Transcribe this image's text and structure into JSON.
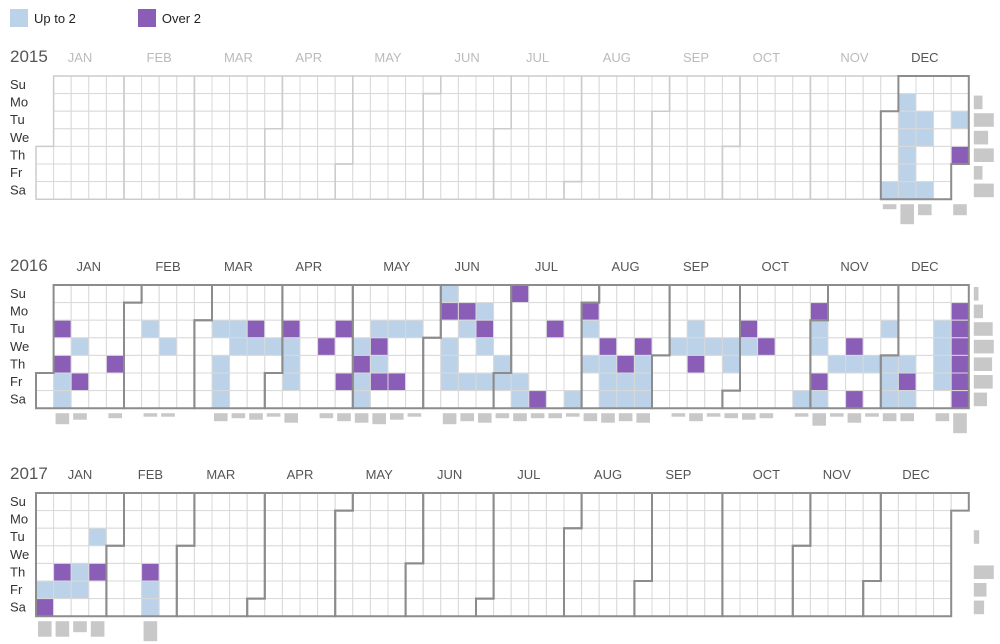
{
  "legend": {
    "up_to_2": {
      "label": "Up to 2",
      "color": "#bcd2e8"
    },
    "over_2": {
      "label": "Over 2",
      "color": "#8a5db6"
    }
  },
  "colors": {
    "empty_cell": "#ffffff",
    "grid_line": "#d9d9d9",
    "month_border": "#8c8c8c",
    "future_border": "#cccccc",
    "month_label": "#555555",
    "month_label_faded": "#bbbbbb",
    "summary_bar": "#c8c8c8"
  },
  "day_labels": [
    "Su",
    "Mo",
    "Tu",
    "We",
    "Th",
    "Fr",
    "Sa"
  ],
  "chart_data": {
    "type": "heatmap",
    "title": "",
    "legend_placement": "top-left",
    "week_start": "Sunday",
    "categories": [
      {
        "label": "Up to 2",
        "level": 1
      },
      {
        "label": "Over 2",
        "level": 2
      }
    ],
    "years": [
      {
        "year": "2015",
        "month_labels": [
          "JAN",
          "FEB",
          "MAR",
          "APR",
          "MAY",
          "JUN",
          "JUL",
          "AUG",
          "SEP",
          "OCT",
          "NOV",
          "DEC"
        ],
        "faded_months": [
          "JAN",
          "FEB",
          "MAR",
          "APR",
          "MAY",
          "JUN",
          "JUL",
          "AUG",
          "SEP",
          "OCT",
          "NOV"
        ],
        "days": [
          [
            "2015-12-07",
            1
          ],
          [
            "2015-12-08",
            1
          ],
          [
            "2015-12-09",
            1
          ],
          [
            "2015-12-10",
            1
          ],
          [
            "2015-12-11",
            1
          ],
          [
            "2015-12-15",
            1
          ],
          [
            "2015-12-16",
            1
          ],
          [
            "2015-12-29",
            1
          ],
          [
            "2015-12-31",
            2
          ],
          [
            "2015-12-05",
            1
          ],
          [
            "2015-12-12",
            1
          ],
          [
            "2015-12-19",
            1
          ]
        ]
      },
      {
        "year": "2016",
        "month_labels": [
          "JAN",
          "FEB",
          "MAR",
          "APR",
          "MAY",
          "JUN",
          "JUL",
          "AUG",
          "SEP",
          "OCT",
          "NOV",
          "DEC"
        ],
        "faded_months": [],
        "days": [
          [
            "2016-01-05",
            2
          ],
          [
            "2016-01-07",
            2
          ],
          [
            "2016-01-08",
            1
          ],
          [
            "2016-01-09",
            1
          ],
          [
            "2016-01-13",
            1
          ],
          [
            "2016-01-15",
            2
          ],
          [
            "2016-01-28",
            2
          ],
          [
            "2016-02-09",
            1
          ],
          [
            "2016-02-17",
            1
          ],
          [
            "2016-03-08",
            1
          ],
          [
            "2016-03-10",
            1
          ],
          [
            "2016-03-11",
            1
          ],
          [
            "2016-03-12",
            1
          ],
          [
            "2016-03-15",
            1
          ],
          [
            "2016-03-16",
            1
          ],
          [
            "2016-03-22",
            2
          ],
          [
            "2016-03-23",
            1
          ],
          [
            "2016-03-30",
            1
          ],
          [
            "2016-04-05",
            2
          ],
          [
            "2016-04-06",
            1
          ],
          [
            "2016-04-07",
            1
          ],
          [
            "2016-04-08",
            1
          ],
          [
            "2016-04-20",
            2
          ],
          [
            "2016-04-26",
            2
          ],
          [
            "2016-04-29",
            2
          ],
          [
            "2016-05-04",
            1
          ],
          [
            "2016-05-05",
            2
          ],
          [
            "2016-05-06",
            1
          ],
          [
            "2016-05-07",
            1
          ],
          [
            "2016-05-10",
            1
          ],
          [
            "2016-05-11",
            2
          ],
          [
            "2016-05-12",
            1
          ],
          [
            "2016-05-13",
            2
          ],
          [
            "2016-05-17",
            1
          ],
          [
            "2016-05-20",
            2
          ],
          [
            "2016-05-24",
            1
          ],
          [
            "2016-06-05",
            1
          ],
          [
            "2016-06-06",
            2
          ],
          [
            "2016-06-08",
            1
          ],
          [
            "2016-06-09",
            1
          ],
          [
            "2016-06-10",
            1
          ],
          [
            "2016-06-13",
            2
          ],
          [
            "2016-06-14",
            1
          ],
          [
            "2016-06-17",
            1
          ],
          [
            "2016-06-20",
            1
          ],
          [
            "2016-06-21",
            2
          ],
          [
            "2016-06-22",
            1
          ],
          [
            "2016-06-24",
            1
          ],
          [
            "2016-06-30",
            1
          ],
          [
            "2016-07-01",
            1
          ],
          [
            "2016-07-03",
            2
          ],
          [
            "2016-07-08",
            1
          ],
          [
            "2016-07-09",
            1
          ],
          [
            "2016-07-16",
            2
          ],
          [
            "2016-07-19",
            2
          ],
          [
            "2016-07-30",
            1
          ],
          [
            "2016-08-01",
            2
          ],
          [
            "2016-08-02",
            1
          ],
          [
            "2016-08-04",
            1
          ],
          [
            "2016-08-10",
            2
          ],
          [
            "2016-08-11",
            1
          ],
          [
            "2016-08-12",
            1
          ],
          [
            "2016-08-13",
            1
          ],
          [
            "2016-08-18",
            2
          ],
          [
            "2016-08-19",
            1
          ],
          [
            "2016-08-20",
            1
          ],
          [
            "2016-08-24",
            2
          ],
          [
            "2016-08-25",
            1
          ],
          [
            "2016-08-26",
            1
          ],
          [
            "2016-08-27",
            1
          ],
          [
            "2016-09-07",
            1
          ],
          [
            "2016-09-13",
            1
          ],
          [
            "2016-09-14",
            1
          ],
          [
            "2016-09-15",
            2
          ],
          [
            "2016-09-21",
            1
          ],
          [
            "2016-09-28",
            1
          ],
          [
            "2016-09-29",
            1
          ],
          [
            "2016-10-04",
            2
          ],
          [
            "2016-10-05",
            1
          ],
          [
            "2016-10-12",
            2
          ],
          [
            "2016-10-29",
            1
          ],
          [
            "2016-10-31",
            2
          ],
          [
            "2016-11-01",
            1
          ],
          [
            "2016-11-02",
            1
          ],
          [
            "2016-11-04",
            2
          ],
          [
            "2016-11-05",
            1
          ],
          [
            "2016-11-10",
            1
          ],
          [
            "2016-11-16",
            2
          ],
          [
            "2016-11-17",
            1
          ],
          [
            "2016-11-19",
            2
          ],
          [
            "2016-11-24",
            1
          ],
          [
            "2016-11-29",
            1
          ],
          [
            "2016-12-01",
            1
          ],
          [
            "2016-12-02",
            1
          ],
          [
            "2016-12-03",
            1
          ],
          [
            "2016-12-08",
            1
          ],
          [
            "2016-12-09",
            2
          ],
          [
            "2016-12-10",
            1
          ],
          [
            "2016-12-20",
            1
          ],
          [
            "2016-12-21",
            1
          ],
          [
            "2016-12-22",
            1
          ],
          [
            "2016-12-23",
            1
          ],
          [
            "2016-12-26",
            2
          ],
          [
            "2016-12-27",
            2
          ],
          [
            "2016-12-28",
            2
          ],
          [
            "2016-12-29",
            2
          ],
          [
            "2016-12-30",
            2
          ],
          [
            "2016-12-31",
            2
          ]
        ]
      },
      {
        "year": "2017",
        "month_labels": [
          "JAN",
          "FEB",
          "MAR",
          "APR",
          "MAY",
          "JUN",
          "JUL",
          "AUG",
          "SEP",
          "OCT",
          "NOV",
          "DEC"
        ],
        "faded_months": [],
        "days": [
          [
            "2017-01-06",
            1
          ],
          [
            "2017-01-07",
            2
          ],
          [
            "2017-01-12",
            2
          ],
          [
            "2017-01-13",
            1
          ],
          [
            "2017-01-19",
            1
          ],
          [
            "2017-01-20",
            1
          ],
          [
            "2017-01-24",
            1
          ],
          [
            "2017-01-26",
            2
          ],
          [
            "2017-02-16",
            2
          ],
          [
            "2017-02-17",
            1
          ],
          [
            "2017-02-18",
            1
          ]
        ]
      }
    ]
  }
}
